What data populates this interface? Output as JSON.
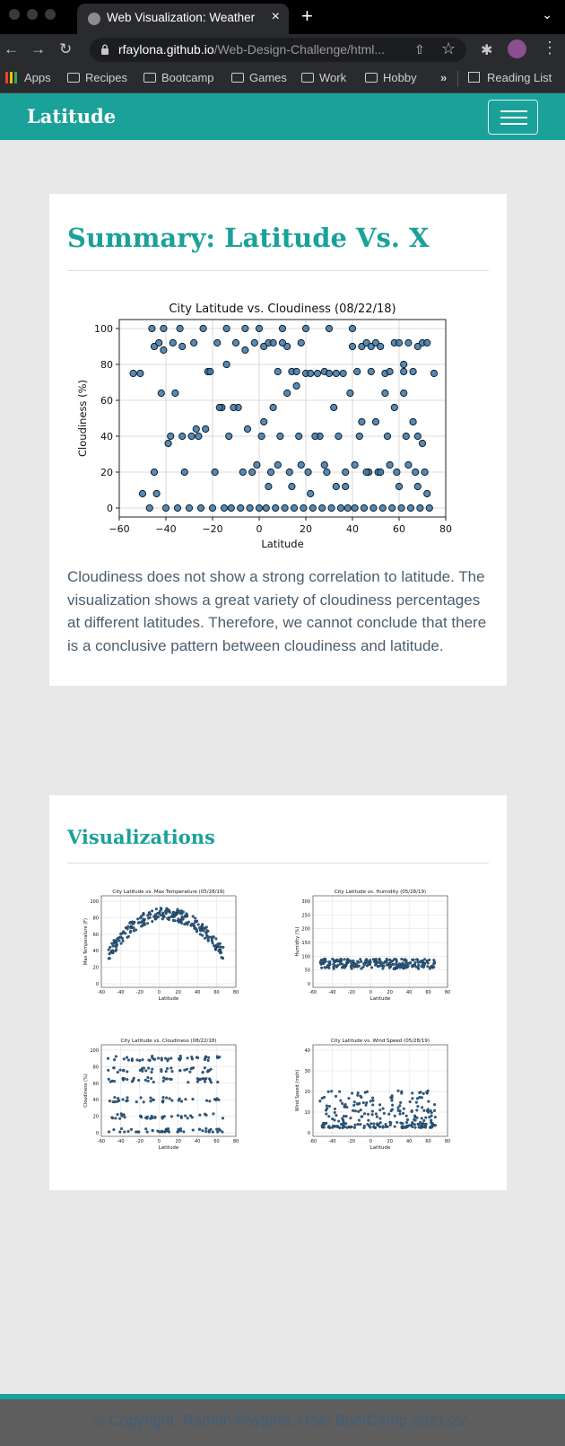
{
  "browser": {
    "tab_title": "Web Visualization: Weather",
    "url_host": "rfaylona.github.io",
    "url_path": "/Web-Design-Challenge/html...",
    "bookmarks": [
      "Apps",
      "Recipes",
      "Bootcamp",
      "Games",
      "Work",
      "Hobby"
    ],
    "reading_list": "Reading List"
  },
  "navbar": {
    "brand": "Latitude"
  },
  "summary": {
    "heading": "Summary: Latitude Vs. X",
    "description": "Cloudiness does not show a strong correlation to latitude. The visualization shows a great variety of cloudiness percentages at different latitudes. Therefore, we cannot conclude that there is a conclusive pattern between cloudiness and latitude."
  },
  "visualizations": {
    "heading": "Visualizations"
  },
  "footer": {
    "copyright": "© Copyright: Ramon Faylona, USC BootCamp 2021-22."
  },
  "colors": {
    "accent": "#1aa19a",
    "marker": "#3b75a6",
    "text": "#4b5e6f"
  },
  "chart_data": [
    {
      "type": "scatter",
      "title": "City Latitude vs. Cloudiness (08/22/18)",
      "xlabel": "Latitude",
      "ylabel": "Cloudiness (%)",
      "xlim": [
        -60,
        80
      ],
      "ylim": [
        -5,
        105
      ],
      "xticks": [
        -60,
        -40,
        -20,
        0,
        20,
        40,
        60,
        80
      ],
      "yticks": [
        0,
        20,
        40,
        60,
        80,
        100
      ],
      "grid": true,
      "x": [
        -54,
        -51,
        -45,
        -43,
        -41,
        -37,
        -33,
        -28,
        -22,
        -18,
        -14,
        -10,
        -6,
        -2,
        2,
        4,
        6,
        8,
        10,
        12,
        14,
        16,
        18,
        20,
        22,
        25,
        28,
        30,
        33,
        36,
        40,
        42,
        44,
        46,
        48,
        50,
        52,
        54,
        56,
        58,
        60,
        62,
        64,
        66,
        68,
        70,
        72,
        75,
        -47,
        -40,
        -35,
        -30,
        -25,
        -20,
        -15,
        -12,
        -8,
        -4,
        0,
        3,
        7,
        11,
        15,
        19,
        23,
        27,
        31,
        35,
        38,
        41,
        45,
        49,
        53,
        57,
        61,
        65,
        69,
        73,
        -45,
        -38,
        -32,
        -26,
        -19,
        -13,
        -7,
        -3,
        1,
        5,
        9,
        13,
        17,
        21,
        26,
        29,
        34,
        37,
        43,
        47,
        51,
        55,
        59,
        63,
        67,
        71,
        -42,
        -36,
        -29,
        -21,
        -16,
        -9,
        -5,
        2,
        6,
        12,
        16,
        24,
        32,
        39,
        44,
        50,
        58,
        62,
        66,
        70,
        -50,
        -44,
        -39,
        -33,
        -27,
        -23,
        -17,
        -11,
        -1,
        4,
        8,
        14,
        18,
        22,
        28,
        33,
        37,
        41,
        46,
        52,
        56,
        60,
        64,
        68,
        72,
        -46,
        -41,
        -34,
        -24,
        -14,
        -6,
        0,
        10,
        20,
        30,
        40,
        48,
        54,
        62,
        68
      ],
      "y": [
        75,
        75,
        90,
        92,
        88,
        92,
        90,
        92,
        76,
        92,
        80,
        92,
        88,
        92,
        90,
        92,
        92,
        76,
        92,
        90,
        76,
        76,
        92,
        75,
        75,
        75,
        76,
        75,
        75,
        75,
        90,
        76,
        90,
        92,
        90,
        92,
        90,
        75,
        76,
        92,
        92,
        76,
        92,
        76,
        90,
        92,
        92,
        75,
        0,
        0,
        0,
        0,
        0,
        0,
        0,
        0,
        0,
        0,
        0,
        0,
        0,
        0,
        0,
        0,
        0,
        0,
        0,
        0,
        0,
        0,
        0,
        0,
        0,
        0,
        0,
        0,
        0,
        0,
        20,
        40,
        20,
        40,
        20,
        40,
        20,
        20,
        40,
        20,
        40,
        20,
        40,
        20,
        40,
        20,
        40,
        20,
        40,
        20,
        20,
        40,
        20,
        40,
        20,
        20,
        64,
        64,
        40,
        76,
        56,
        56,
        44,
        48,
        56,
        64,
        68,
        40,
        56,
        64,
        48,
        48,
        56,
        64,
        48,
        36,
        8,
        8,
        36,
        40,
        44,
        44,
        56,
        56,
        24,
        12,
        24,
        12,
        24,
        8,
        24,
        12,
        12,
        24,
        20,
        20,
        24,
        12,
        24,
        12,
        8,
        100,
        100,
        100,
        100,
        100,
        100,
        100,
        100,
        100,
        100,
        100,
        76,
        64,
        80,
        40
      ]
    }
  ],
  "thumbnails": [
    {
      "title": "City Latitude vs. Max Temperature (05/28/19)",
      "xlabel": "Latitude",
      "ylabel": "Max Temperature (F)",
      "yticks": [
        "0",
        "20",
        "40",
        "60",
        "80",
        "100"
      ]
    },
    {
      "title": "City Latitude vs. Humidity (05/28/19)",
      "xlabel": "Latitude",
      "ylabel": "Humidity (%)",
      "yticks": [
        "0",
        "50",
        "100",
        "150",
        "200",
        "250",
        "300"
      ]
    },
    {
      "title": "City Latitude vs. Cloudiness (08/22/18)",
      "xlabel": "Latitude",
      "ylabel": "Cloudiness (%)",
      "yticks": [
        "0",
        "20",
        "40",
        "60",
        "80",
        "100"
      ]
    },
    {
      "title": "City Latitude vs. Wind Speed (05/28/19)",
      "xlabel": "Latitude",
      "ylabel": "Wind Speed (mph)",
      "yticks": [
        "0",
        "10",
        "20",
        "30",
        "40"
      ]
    }
  ],
  "thumb_xticks": [
    "-60",
    "-40",
    "-20",
    "0",
    "20",
    "40",
    "60",
    "80"
  ]
}
